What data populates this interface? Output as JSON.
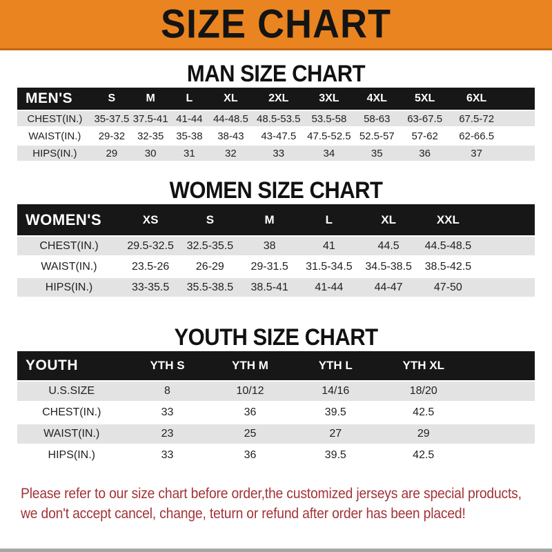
{
  "banner": {
    "title": "SIZE CHART"
  },
  "colors": {
    "banner_bg": "#EA8420",
    "header_bar": "#171717",
    "row_stripe": "#E3E3E3",
    "footer_text": "#A23338"
  },
  "sections": [
    {
      "heading": "MAN SIZE CHART",
      "table_label": "MEN'S",
      "columns": [
        "S",
        "M",
        "L",
        "XL",
        "2XL",
        "3XL",
        "4XL",
        "5XL",
        "6XL"
      ],
      "rows": [
        {
          "label": "CHEST(IN.)",
          "values": [
            "35-37.5",
            "37.5-41",
            "41-44",
            "44-48.5",
            "48.5-53.5",
            "53.5-58",
            "58-63",
            "63-67.5",
            "67.5-72"
          ]
        },
        {
          "label": "WAIST(IN.)",
          "values": [
            "29-32",
            "32-35",
            "35-38",
            "38-43",
            "43-47.5",
            "47.5-52.5",
            "52.5-57",
            "57-62",
            "62-66.5"
          ]
        },
        {
          "label": "HIPS(IN.)",
          "values": [
            "29",
            "30",
            "31",
            "32",
            "33",
            "34",
            "35",
            "36",
            "37"
          ]
        }
      ]
    },
    {
      "heading": "WOMEN SIZE CHART",
      "table_label": "WOMEN'S",
      "columns": [
        "XS",
        "S",
        "M",
        "L",
        "XL",
        "XXL"
      ],
      "rows": [
        {
          "label": "CHEST(IN.)",
          "values": [
            "29.5-32.5",
            "32.5-35.5",
            "38",
            "41",
            "44.5",
            "44.5-48.5"
          ]
        },
        {
          "label": "WAIST(IN.)",
          "values": [
            "23.5-26",
            "26-29",
            "29-31.5",
            "31.5-34.5",
            "34.5-38.5",
            "38.5-42.5"
          ]
        },
        {
          "label": "HIPS(IN.)",
          "values": [
            "33-35.5",
            "35.5-38.5",
            "38.5-41",
            "41-44",
            "44-47",
            "47-50"
          ]
        }
      ]
    },
    {
      "heading": "YOUTH SIZE CHART",
      "table_label": "YOUTH",
      "columns": [
        "YTH S",
        "YTH M",
        "YTH L",
        "YTH XL"
      ],
      "rows": [
        {
          "label": "U.S.SIZE",
          "values": [
            "8",
            "10/12",
            "14/16",
            "18/20"
          ]
        },
        {
          "label": "CHEST(IN.)",
          "values": [
            "33",
            "36",
            "39.5",
            "42.5"
          ]
        },
        {
          "label": "WAIST(IN.)",
          "values": [
            "23",
            "25",
            "27",
            "29"
          ]
        },
        {
          "label": "HIPS(IN.)",
          "values": [
            "33",
            "36",
            "39.5",
            "42.5"
          ]
        }
      ]
    }
  ],
  "footer": {
    "line1": "Please refer to our size chart before order,the customized jerseys are special products,",
    "line2": "we don't accept cancel, change, teturn or refund after order has been placed!"
  }
}
